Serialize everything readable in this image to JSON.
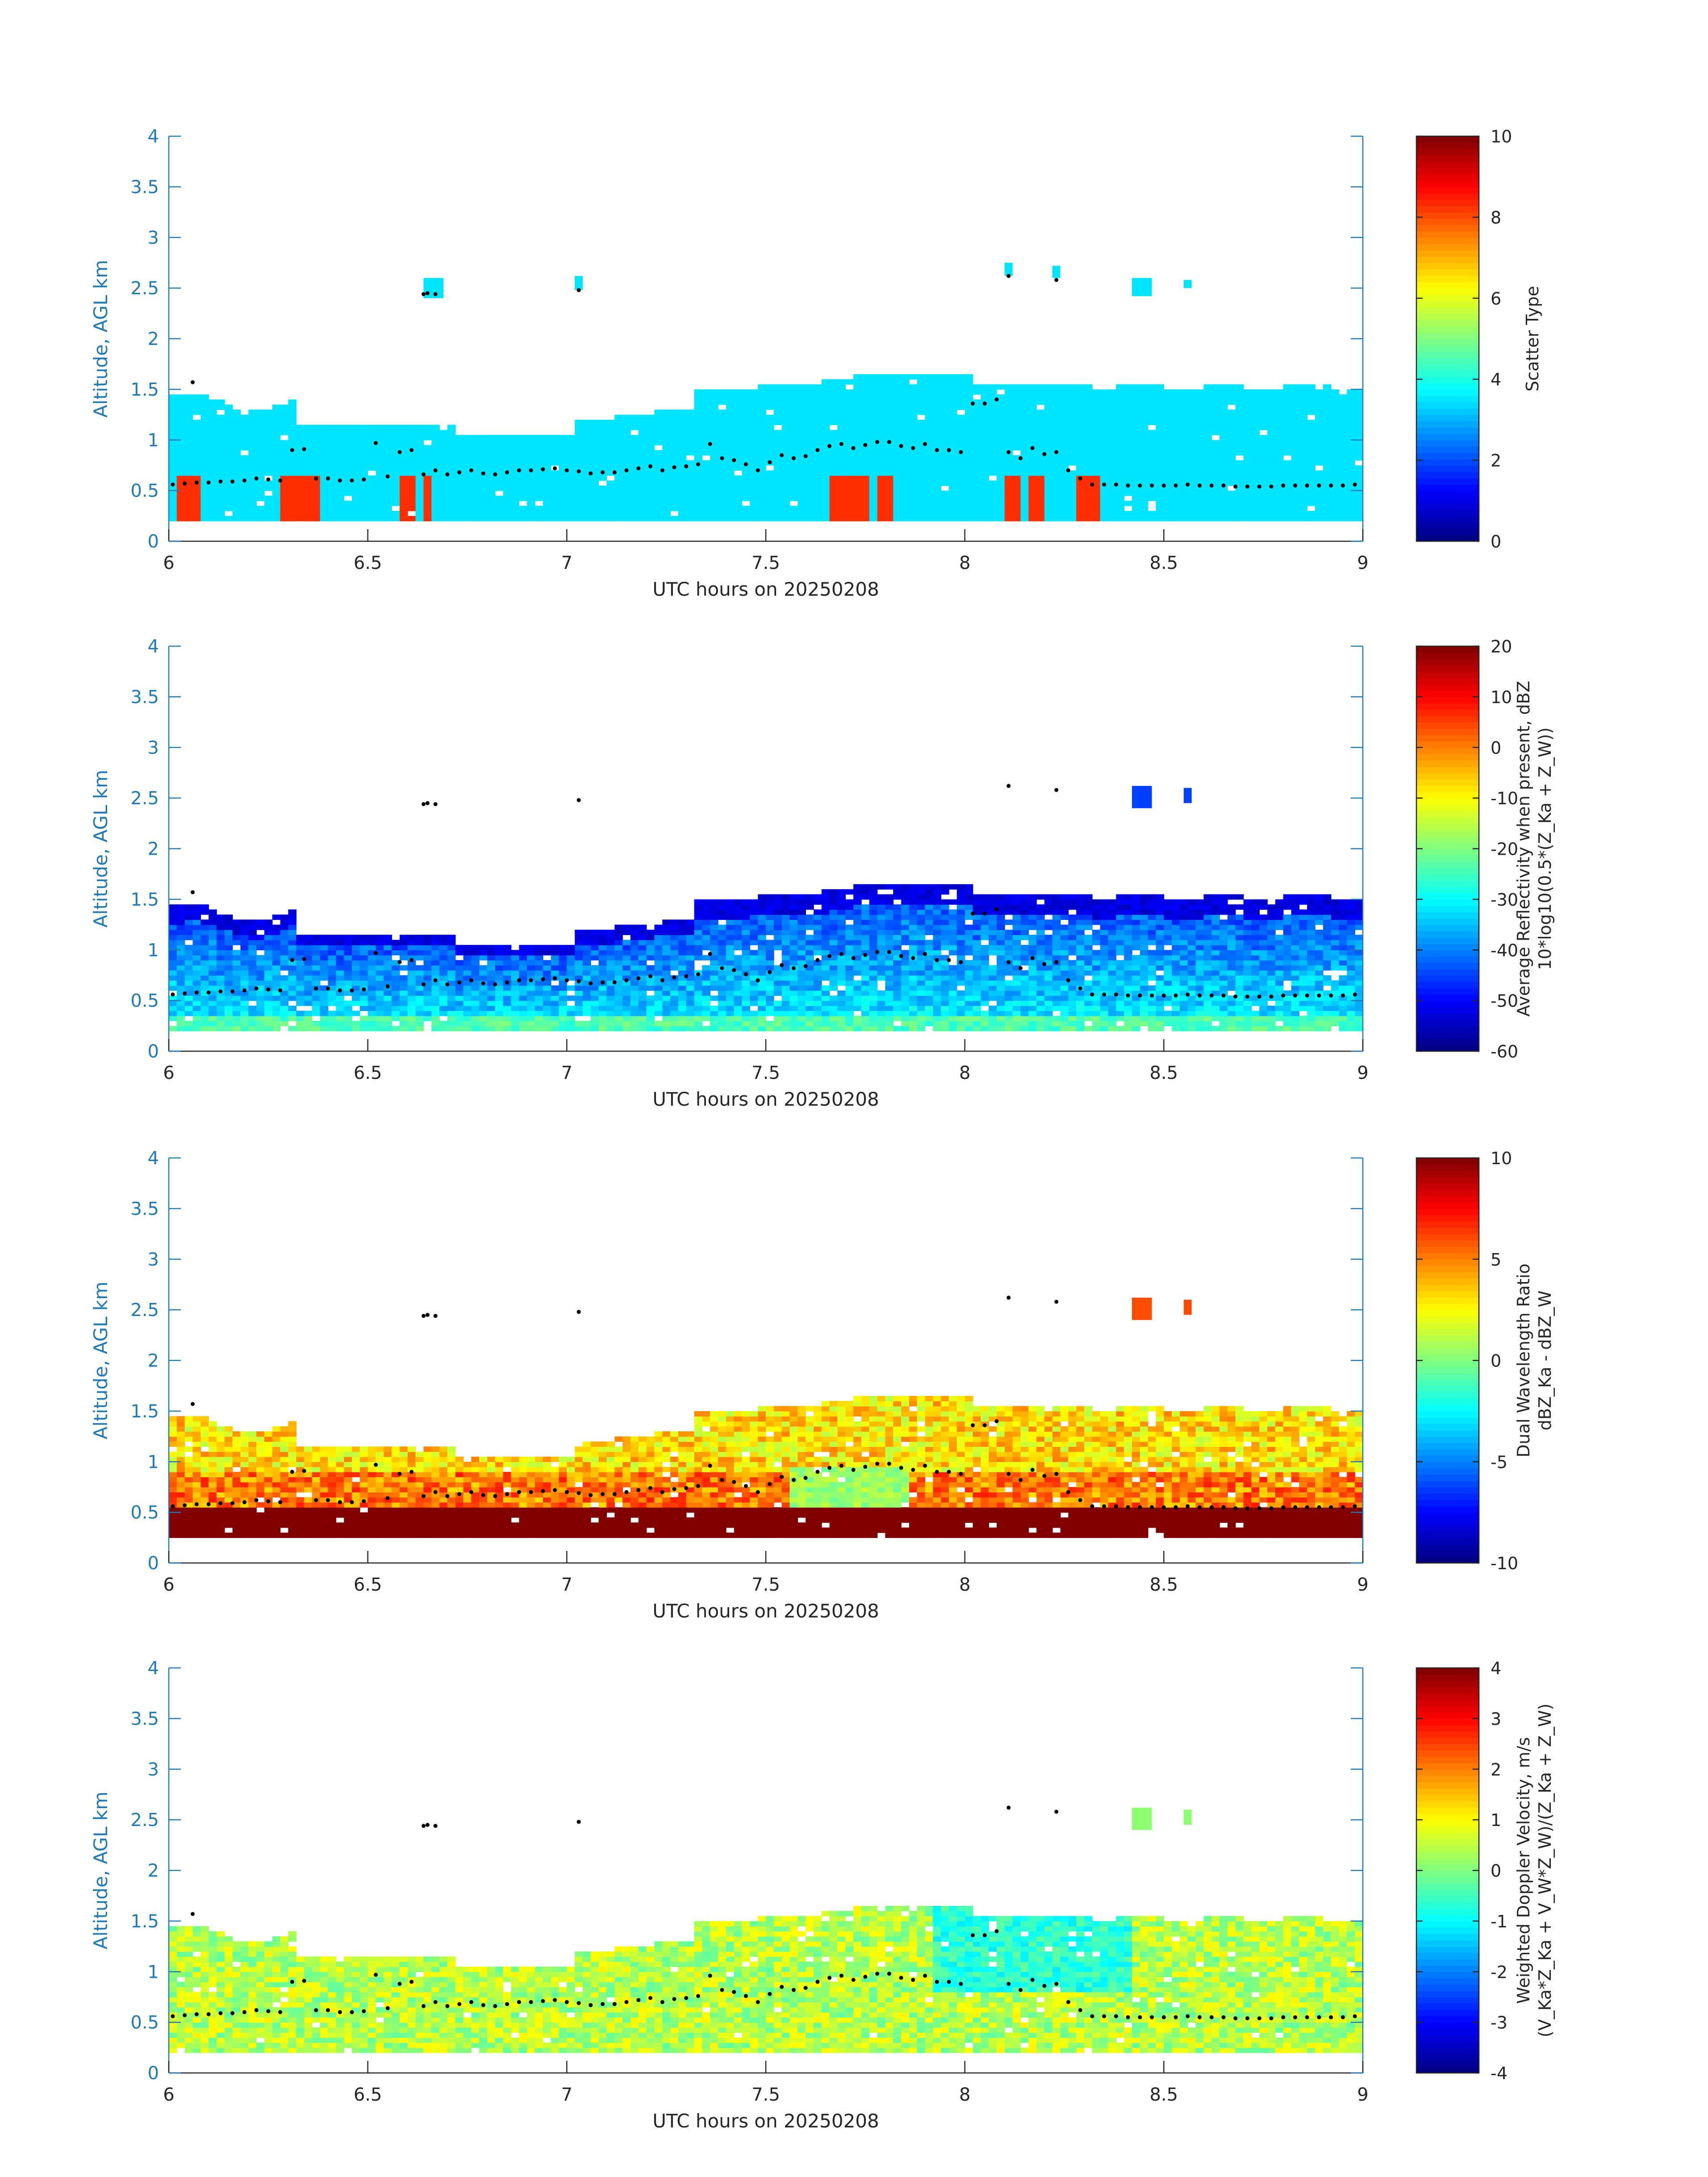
{
  "chart_data": [
    {
      "type": "heatmap",
      "xlabel": "UTC hours on 20250208",
      "ylabel": "Altitude, AGL km",
      "xlim": [
        6,
        9
      ],
      "ylim": [
        0,
        4
      ],
      "xticks": [
        "6",
        "6.5",
        "7",
        "7.5",
        "8",
        "8.5",
        "9"
      ],
      "yticks": [
        "0",
        "0.5",
        "1",
        "1.5",
        "2",
        "2.5",
        "3",
        "3.5",
        "4"
      ],
      "colorbar": {
        "label_lines": [
          "Scatter Type"
        ],
        "colormap": "jet",
        "range": [
          0,
          10
        ],
        "ticks": [
          "0",
          "2",
          "4",
          "6",
          "8",
          "10"
        ]
      },
      "summary": {
        "cloud_layer_km": [
          0.2,
          1.6
        ],
        "dominant_value": 3.5,
        "secondary_value": 8.3,
        "isolated_patches_at_km": 2.5
      }
    },
    {
      "type": "heatmap",
      "xlabel": "UTC hours on 20250208",
      "ylabel": "Altitude, AGL km",
      "xlim": [
        6,
        9
      ],
      "ylim": [
        0,
        4
      ],
      "xticks": [
        "6",
        "6.5",
        "7",
        "7.5",
        "8",
        "8.5",
        "9"
      ],
      "yticks": [
        "0",
        "0.5",
        "1",
        "1.5",
        "2",
        "2.5",
        "3",
        "3.5",
        "4"
      ],
      "colorbar": {
        "label_lines": [
          "Average Reflectivity when present, dBZ",
          "10*log10(0.5*(Z_Ka + Z_W))"
        ],
        "colormap": "jet",
        "range": [
          -60,
          20
        ],
        "ticks": [
          "-60",
          "-50",
          "-40",
          "-30",
          "-20",
          "-10",
          "0",
          "10",
          "20"
        ]
      },
      "summary": {
        "cloud_layer_km": [
          0.2,
          1.7
        ],
        "typical_value_dBZ": -38,
        "cloud_top_value_dBZ": -55
      }
    },
    {
      "type": "heatmap",
      "xlabel": "UTC hours on 20250208",
      "ylabel": "Altitude, AGL km",
      "xlim": [
        6,
        9
      ],
      "ylim": [
        0,
        4
      ],
      "xticks": [
        "6",
        "6.5",
        "7",
        "7.5",
        "8",
        "8.5",
        "9"
      ],
      "yticks": [
        "0",
        "0.5",
        "1",
        "1.5",
        "2",
        "2.5",
        "3",
        "3.5",
        "4"
      ],
      "colorbar": {
        "label_lines": [
          "Dual Wavelength Ratio",
          "dBZ_Ka - dBZ_W"
        ],
        "colormap": "jet",
        "range": [
          -10,
          10
        ],
        "ticks": [
          "-10",
          "-5",
          "0",
          "5",
          "10"
        ]
      },
      "summary": {
        "cloud_layer_km": [
          0.25,
          1.7
        ],
        "near_surface_value_dB": 10,
        "upper_cloud_value_dB": 3.5
      }
    },
    {
      "type": "heatmap",
      "xlabel": "UTC hours on 20250208",
      "ylabel": "Altitude, AGL km",
      "xlim": [
        6,
        9
      ],
      "ylim": [
        0,
        4
      ],
      "xticks": [
        "6",
        "6.5",
        "7",
        "7.5",
        "8",
        "8.5",
        "9"
      ],
      "yticks": [
        "0",
        "0.5",
        "1",
        "1.5",
        "2",
        "2.5",
        "3",
        "3.5",
        "4"
      ],
      "colorbar": {
        "label_lines": [
          "Weighted Doppler Velocity, m/s",
          "(V_Ka*Z_Ka + V_W*Z_W)/(Z_Ka + Z_W)"
        ],
        "colormap": "jet",
        "range": [
          -4,
          4
        ],
        "ticks": [
          "-4",
          "-3",
          "-2",
          "-1",
          "0",
          "1",
          "2",
          "3",
          "4"
        ]
      },
      "summary": {
        "cloud_layer_km": [
          0.2,
          1.7
        ],
        "typical_value_ms": 0.3
      }
    }
  ],
  "cloud_base_markers": {
    "description": "black dots",
    "x": [
      6.01,
      6.04,
      6.07,
      6.1,
      6.13,
      6.16,
      6.19,
      6.22,
      6.25,
      6.28,
      6.31,
      6.34,
      6.37,
      6.4,
      6.43,
      6.46,
      6.49,
      6.52,
      6.55,
      6.58,
      6.61,
      6.64,
      6.67,
      6.7,
      6.73,
      6.76,
      6.79,
      6.82,
      6.85,
      6.88,
      6.91,
      6.94,
      6.97,
      7.0,
      7.03,
      7.06,
      7.09,
      7.12,
      7.15,
      7.18,
      7.21,
      7.24,
      7.27,
      7.3,
      7.33,
      7.36,
      7.39,
      7.42,
      7.45,
      7.48,
      7.51,
      7.54,
      7.57,
      7.6,
      7.63,
      7.66,
      7.69,
      7.72,
      7.75,
      7.78,
      7.81,
      7.84,
      7.87,
      7.9,
      7.93,
      7.96,
      7.99,
      8.02,
      8.05,
      8.08,
      8.11,
      8.14,
      8.17,
      8.2,
      8.23,
      8.26,
      8.29,
      8.32,
      8.35,
      8.38,
      8.41,
      8.44,
      8.47,
      8.5,
      8.53,
      8.56,
      8.59,
      8.62,
      8.65,
      8.68,
      8.71,
      8.74,
      8.77,
      8.8,
      8.83,
      8.86,
      8.89,
      8.92,
      8.95,
      8.98
    ],
    "y": [
      0.56,
      0.57,
      0.58,
      0.58,
      0.59,
      0.59,
      0.6,
      0.62,
      0.61,
      0.6,
      0.9,
      0.91,
      0.62,
      0.62,
      0.6,
      0.6,
      0.61,
      0.97,
      0.64,
      0.88,
      0.9,
      0.66,
      0.7,
      0.66,
      0.68,
      0.7,
      0.67,
      0.66,
      0.68,
      0.7,
      0.7,
      0.71,
      0.72,
      0.7,
      0.69,
      0.67,
      0.68,
      0.68,
      0.7,
      0.72,
      0.74,
      0.7,
      0.73,
      0.74,
      0.76,
      0.96,
      0.82,
      0.8,
      0.76,
      0.7,
      0.78,
      0.85,
      0.82,
      0.84,
      0.9,
      0.94,
      0.96,
      0.92,
      0.95,
      0.98,
      0.98,
      0.94,
      0.92,
      0.96,
      0.9,
      0.9,
      0.88,
      1.36,
      1.36,
      1.4,
      0.88,
      0.82,
      0.92,
      0.86,
      0.88,
      0.7,
      0.62,
      0.56,
      0.56,
      0.56,
      0.55,
      0.55,
      0.55,
      0.55,
      0.55,
      0.56,
      0.55,
      0.55,
      0.55,
      0.54,
      0.54,
      0.54,
      0.54,
      0.55,
      0.55,
      0.55,
      0.55,
      0.55,
      0.55,
      0.56
    ],
    "upper_x": [
      6.06,
      6.64,
      6.65,
      6.67,
      7.03,
      8.11,
      8.23
    ],
    "upper_y": [
      1.57,
      2.44,
      2.45,
      2.44,
      2.48,
      2.62,
      2.58
    ]
  }
}
